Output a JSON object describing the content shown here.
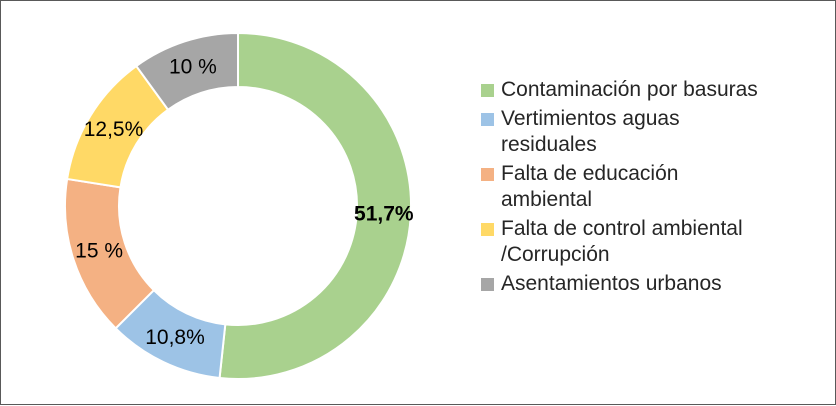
{
  "chart_data": {
    "type": "pie",
    "subtype": "donut",
    "title": "",
    "legend_position": "right",
    "start_angle_deg": 0,
    "direction": "clockwise",
    "donut_hole_ratio": 0.69,
    "gap_color": "#ffffff",
    "slices": [
      {
        "name": "Contaminación por basuras",
        "value": 51.7,
        "label": "51,7%",
        "color": "#A9D18E",
        "label_bold": true
      },
      {
        "name": "Vertimientos aguas residuales",
        "value": 10.8,
        "label": "10,8%",
        "color": "#9DC3E6",
        "label_bold": false
      },
      {
        "name": "Falta de educación ambiental",
        "value": 15,
        "label": "15 %",
        "color": "#F4B183",
        "label_bold": false
      },
      {
        "name": "Falta de control ambiental /Corrupción",
        "value": 12.5,
        "label": "12,5%",
        "color": "#FFD966",
        "label_bold": false
      },
      {
        "name": "Asentamientos urbanos",
        "value": 10,
        "label": "10 %",
        "color": "#A6A6A6",
        "label_bold": false
      }
    ]
  }
}
